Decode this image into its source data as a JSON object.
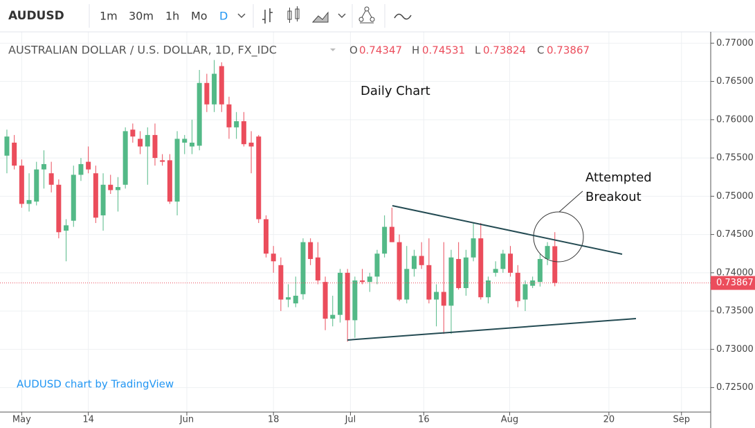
{
  "toolbar": {
    "symbol": "AUDUSD",
    "intervals": [
      "1m",
      "30m",
      "1h",
      "Mo",
      "D"
    ]
  },
  "chart_data": {
    "type": "candlestick",
    "title": "AUSTRALIAN DOLLAR / U.S. DOLLAR, 1D, FX_IDC",
    "legend_keys": [
      "O",
      "H",
      "L",
      "C"
    ],
    "annotations": {
      "chart_label": "Daily Chart",
      "breakout": [
        "Attempted",
        "Breakout"
      ],
      "watermark": "AUDUSD chart by TradingView"
    },
    "up_color": "#53b987",
    "down_color": "#eb4d5c",
    "open": [
      0.7553,
      0.757,
      0.754,
      0.749,
      0.7493,
      0.7535,
      0.753,
      0.7515,
      0.7455,
      0.7468,
      0.7528,
      0.7545,
      0.753,
      0.7475,
      0.7515,
      0.7508,
      0.7515,
      0.7587,
      0.7575,
      0.7565,
      0.758,
      0.7547,
      0.7547,
      0.7493,
      0.757,
      0.7565,
      0.7566,
      0.7648,
      0.762,
      0.767,
      0.762,
      0.759,
      0.7598,
      0.757,
      0.7578,
      0.747,
      0.7425,
      0.741,
      0.7365,
      0.736,
      0.7372,
      0.744,
      0.742,
      0.7388,
      0.734,
      0.7345,
      0.74,
      0.7338,
      0.739,
      0.7388,
      0.7395,
      0.7425,
      0.746,
      0.744,
      0.7365,
      0.7405,
      0.7422,
      0.741,
      0.7365,
      0.7375,
      0.7357,
      0.7418,
      0.738,
      0.742,
      0.7445,
      0.7368,
      0.74,
      0.7405,
      0.7425,
      0.74,
      0.7365,
      0.7383,
      0.7388,
      0.7418,
      0.74347
    ],
    "high": [
      0.7587,
      0.758,
      0.7548,
      0.753,
      0.7545,
      0.756,
      0.7545,
      0.7522,
      0.747,
      0.754,
      0.755,
      0.7565,
      0.754,
      0.753,
      0.7528,
      0.7525,
      0.759,
      0.7595,
      0.7585,
      0.759,
      0.7595,
      0.7555,
      0.7555,
      0.7585,
      0.758,
      0.76,
      0.7665,
      0.766,
      0.7678,
      0.7675,
      0.763,
      0.761,
      0.761,
      0.7585,
      0.758,
      0.7475,
      0.7435,
      0.742,
      0.7385,
      0.7395,
      0.7445,
      0.7445,
      0.744,
      0.7395,
      0.737,
      0.7405,
      0.7405,
      0.7395,
      0.7405,
      0.74,
      0.743,
      0.7475,
      0.7485,
      0.745,
      0.7435,
      0.743,
      0.744,
      0.7445,
      0.7385,
      0.744,
      0.743,
      0.744,
      0.743,
      0.7465,
      0.7465,
      0.7395,
      0.7415,
      0.743,
      0.7435,
      0.741,
      0.739,
      0.7395,
      0.7425,
      0.744,
      0.74531
    ],
    "low": [
      0.753,
      0.7535,
      0.7485,
      0.748,
      0.7488,
      0.751,
      0.7505,
      0.7445,
      0.7415,
      0.746,
      0.752,
      0.753,
      0.7465,
      0.7455,
      0.7503,
      0.748,
      0.751,
      0.757,
      0.7555,
      0.7515,
      0.754,
      0.754,
      0.749,
      0.7475,
      0.7555,
      0.7555,
      0.756,
      0.761,
      0.761,
      0.761,
      0.7575,
      0.7575,
      0.7565,
      0.753,
      0.7465,
      0.742,
      0.74,
      0.735,
      0.7355,
      0.7355,
      0.7365,
      0.741,
      0.7385,
      0.7325,
      0.733,
      0.7335,
      0.731,
      0.7315,
      0.7385,
      0.7375,
      0.7385,
      0.742,
      0.744,
      0.7363,
      0.736,
      0.7395,
      0.7405,
      0.736,
      0.733,
      0.732,
      0.732,
      0.7378,
      0.737,
      0.7415,
      0.7365,
      0.736,
      0.7395,
      0.74,
      0.7395,
      0.7355,
      0.735,
      0.738,
      0.7382,
      0.741,
      0.73824
    ],
    "close": [
      0.7578,
      0.754,
      0.749,
      0.7495,
      0.7535,
      0.7542,
      0.7515,
      0.7453,
      0.7462,
      0.7528,
      0.7542,
      0.7535,
      0.7472,
      0.7515,
      0.7508,
      0.7512,
      0.7585,
      0.7578,
      0.7565,
      0.758,
      0.755,
      0.7545,
      0.7493,
      0.7575,
      0.7575,
      0.757,
      0.7648,
      0.762,
      0.766,
      0.762,
      0.759,
      0.7598,
      0.7568,
      0.7565,
      0.747,
      0.7425,
      0.7415,
      0.7365,
      0.7368,
      0.737,
      0.744,
      0.7418,
      0.739,
      0.734,
      0.7345,
      0.74,
      0.7338,
      0.739,
      0.7388,
      0.7395,
      0.7425,
      0.746,
      0.744,
      0.7365,
      0.7405,
      0.7422,
      0.741,
      0.7365,
      0.7375,
      0.7357,
      0.742,
      0.738,
      0.742,
      0.7445,
      0.7368,
      0.739,
      0.7405,
      0.7425,
      0.74,
      0.7363,
      0.7385,
      0.739,
      0.7418,
      0.7435,
      0.73867
    ],
    "xlim": [
      -0.93,
      95.05
    ],
    "xticks": [
      {
        "value": 2,
        "label": "May"
      },
      {
        "value": 11,
        "label": "14"
      },
      {
        "value": 24.3,
        "label": "Jun"
      },
      {
        "value": 36,
        "label": "18"
      },
      {
        "value": 46.4,
        "label": "Jul"
      },
      {
        "value": 56.3,
        "label": "16"
      },
      {
        "value": 67.9,
        "label": "Aug"
      },
      {
        "value": 81.3,
        "label": "20"
      },
      {
        "value": 91.1,
        "label": "Sep"
      }
    ],
    "ylim": [
      0.7218,
      0.7722
    ],
    "yticks": [
      {
        "value": 0.725,
        "label": "0.72500"
      },
      {
        "value": 0.73,
        "label": "0.73000"
      },
      {
        "value": 0.735,
        "label": "0.73500"
      },
      {
        "value": 0.74,
        "label": "0.74000"
      },
      {
        "value": 0.745,
        "label": "0.74500"
      },
      {
        "value": 0.75,
        "label": "0.75000"
      },
      {
        "value": 0.755,
        "label": "0.75500"
      },
      {
        "value": 0.76,
        "label": "0.76000"
      },
      {
        "value": 0.765,
        "label": "0.76500"
      },
      {
        "value": 0.77,
        "label": "0.77000"
      }
    ],
    "grid": true
  }
}
